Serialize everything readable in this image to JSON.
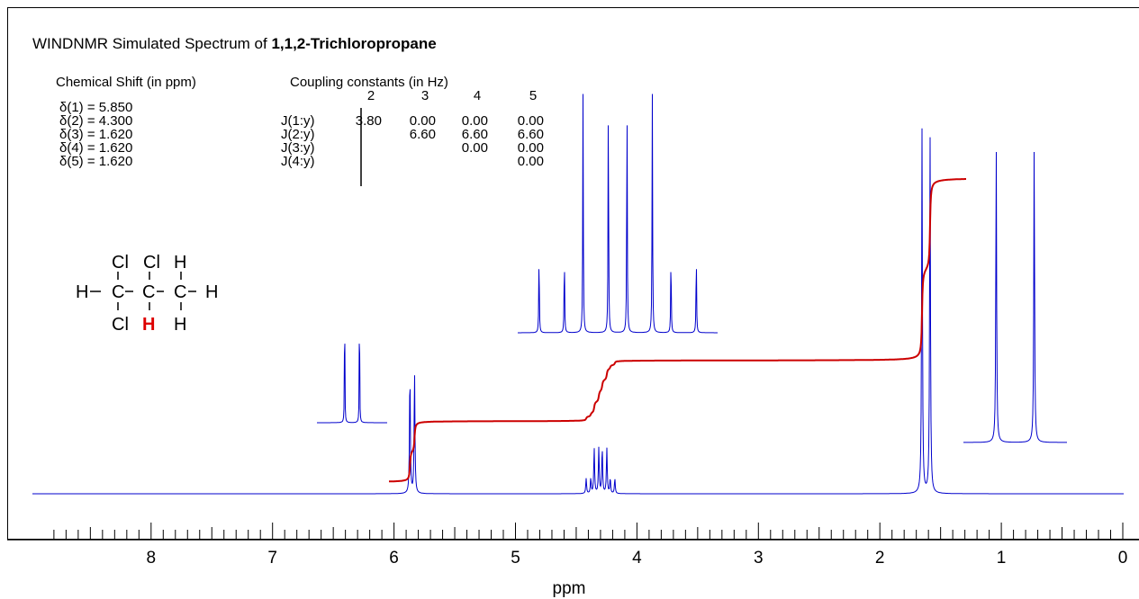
{
  "title_prefix": "WINDNMR Simulated Spectrum of ",
  "title_compound": "1,1,2-Trichloropropane",
  "shift_header": "Chemical Shift (in ppm)",
  "coupling_header": "Coupling constants (in Hz)",
  "shifts": [
    "δ(1) = 5.850",
    "δ(2) = 4.300",
    "δ(3) = 1.620",
    "δ(4) = 1.620",
    "δ(5) = 1.620"
  ],
  "coupling_cols": [
    "2",
    "3",
    "4",
    "5"
  ],
  "coupling_rows": [
    {
      "label": "J(1:y)",
      "values": [
        "3.80",
        "0.00",
        "0.00",
        "0.00"
      ]
    },
    {
      "label": "J(2:y)",
      "values": [
        "",
        "6.60",
        "6.60",
        "6.60"
      ]
    },
    {
      "label": "J(3:y)",
      "values": [
        "",
        "",
        "0.00",
        "0.00"
      ]
    },
    {
      "label": "J(4:y)",
      "values": [
        "",
        "",
        "",
        "0.00"
      ]
    }
  ],
  "structure": {
    "top": [
      "Cl",
      "Cl",
      "H"
    ],
    "middle": [
      "H",
      "C",
      "C",
      "C",
      "H"
    ],
    "bottom": [
      "Cl",
      "H",
      "H"
    ],
    "highlight_color": "#dd0000"
  },
  "colors": {
    "spectrum": "#0000cc",
    "integral": "#cc0000",
    "axis": "#000000"
  },
  "chart_data": {
    "type": "line",
    "xlabel": "ppm",
    "xlim": [
      9,
      0
    ],
    "x_reversed": true,
    "x_ticks": [
      8,
      7,
      6,
      5,
      4,
      3,
      2,
      1,
      0
    ],
    "tick_labels": [
      "8",
      "7",
      "6",
      "5",
      "4",
      "3",
      "2",
      "1",
      "0"
    ],
    "signals": [
      {
        "proton": "H1",
        "shift": 5.85,
        "multiplicity": "doublet",
        "J_Hz": 3.8,
        "integral": 1
      },
      {
        "proton": "H2",
        "shift": 4.3,
        "multiplicity": "doublet of quartets",
        "J_Hz": [
          3.8,
          6.6
        ],
        "integral": 1
      },
      {
        "proton": "CH3",
        "shift": 1.62,
        "multiplicity": "doublet",
        "J_Hz": 6.6,
        "integral": 3
      }
    ]
  }
}
